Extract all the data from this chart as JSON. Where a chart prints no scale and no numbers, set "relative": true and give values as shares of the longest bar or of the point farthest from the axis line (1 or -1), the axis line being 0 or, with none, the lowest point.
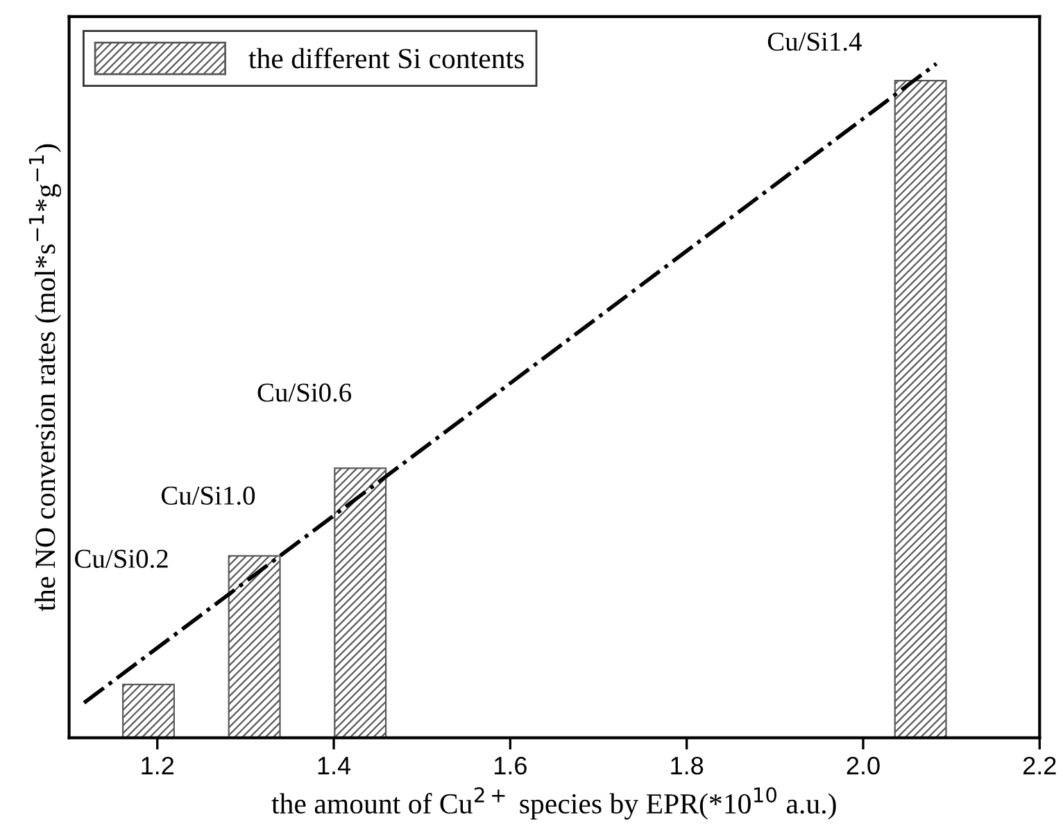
{
  "chart_data": {
    "type": "bar",
    "relative": true,
    "xlabel": "the amount of Cu$^{2+}$ species by EPR(*10$^{10}$ a.u.)",
    "ylabel": "the NO conversion rates (mol*s$^{−1}$*g$^{−1}$)",
    "xlim": [
      1.1,
      2.2
    ],
    "xticks": [
      1.2,
      1.4,
      1.6,
      1.8,
      {
        "value": 2.0,
        "label": "2.0"
      },
      2.2
    ],
    "tick_labels": "x",
    "grid": false,
    "legend": "top left",
    "series": [
      {
        "name": "the different Si contents",
        "color": "#595959",
        "x": [
          1.19,
          1.31,
          1.43,
          2.065
        ],
        "values": [
          0.079,
          0.27,
          0.4,
          0.975
        ]
      },
      {
        "type": "line",
        "color": "#000000",
        "line_style": "dashdot",
        "x": [
          1.117,
          2.083
        ],
        "values": [
          0.052,
          1.0
        ]
      }
    ],
    "annotations": [
      "Cu/Si0.2",
      "Cu/Si1.0",
      "Cu/Si0.6",
      "Cu/Si1.4"
    ]
  }
}
